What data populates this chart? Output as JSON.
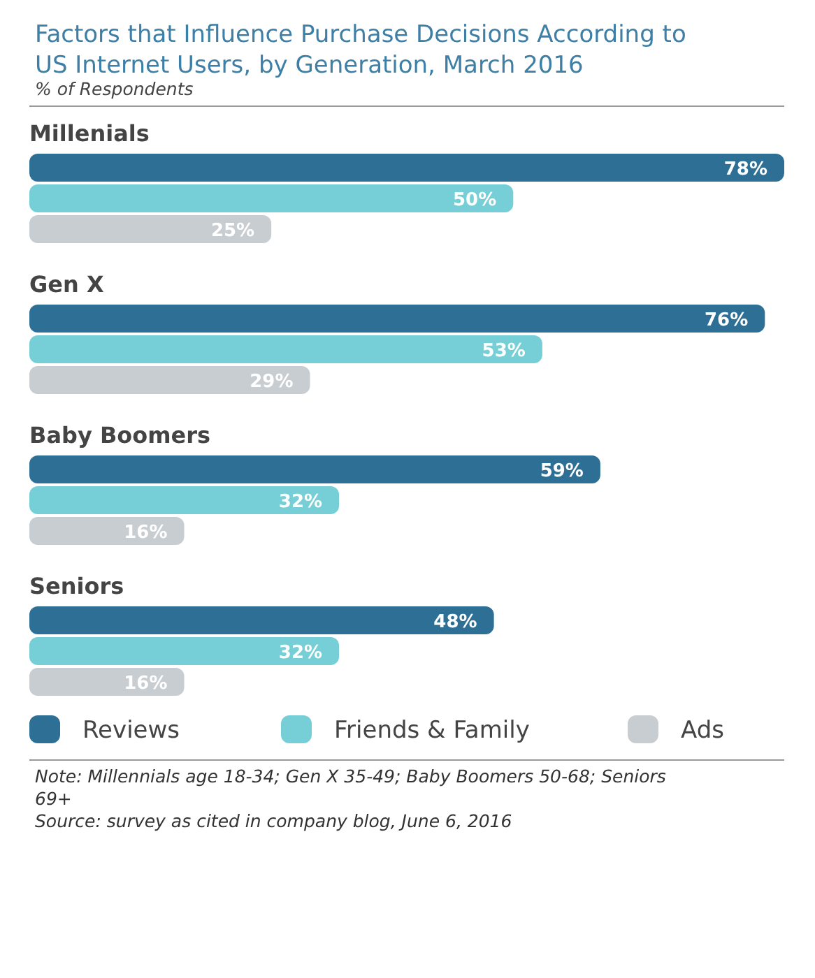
{
  "chart_data": {
    "type": "bar",
    "orientation": "horizontal",
    "title": "Factors that Influence Purchase Decisions According to US Internet Users, by Generation, March 2016",
    "subtitle": "% of Respondents",
    "categories": [
      "Millenials",
      "Gen X",
      "Baby Boomers",
      "Seniors"
    ],
    "series": [
      {
        "name": "Reviews",
        "color": "#2e6f96",
        "values": [
          78,
          76,
          59,
          48
        ],
        "value_labels": [
          "78%",
          "76%",
          "59%",
          "48%"
        ]
      },
      {
        "name": "Friends & Family",
        "color": "#76cfd6",
        "values": [
          50,
          53,
          32,
          32
        ],
        "value_labels": [
          "50%",
          "53%",
          "32%",
          "32%"
        ]
      },
      {
        "name": "Ads",
        "color": "#c8cdd1",
        "values": [
          25,
          29,
          16,
          16
        ],
        "value_labels": [
          "25%",
          "29%",
          "16%",
          "16%"
        ]
      }
    ],
    "legend": "bottom",
    "annotations": [
      "Note: Millennials age 18-34; Gen X 35-49; Baby Boomers 50-68; Seniors 69+",
      "Source: survey as cited in company blog, June 6, 2016"
    ]
  }
}
